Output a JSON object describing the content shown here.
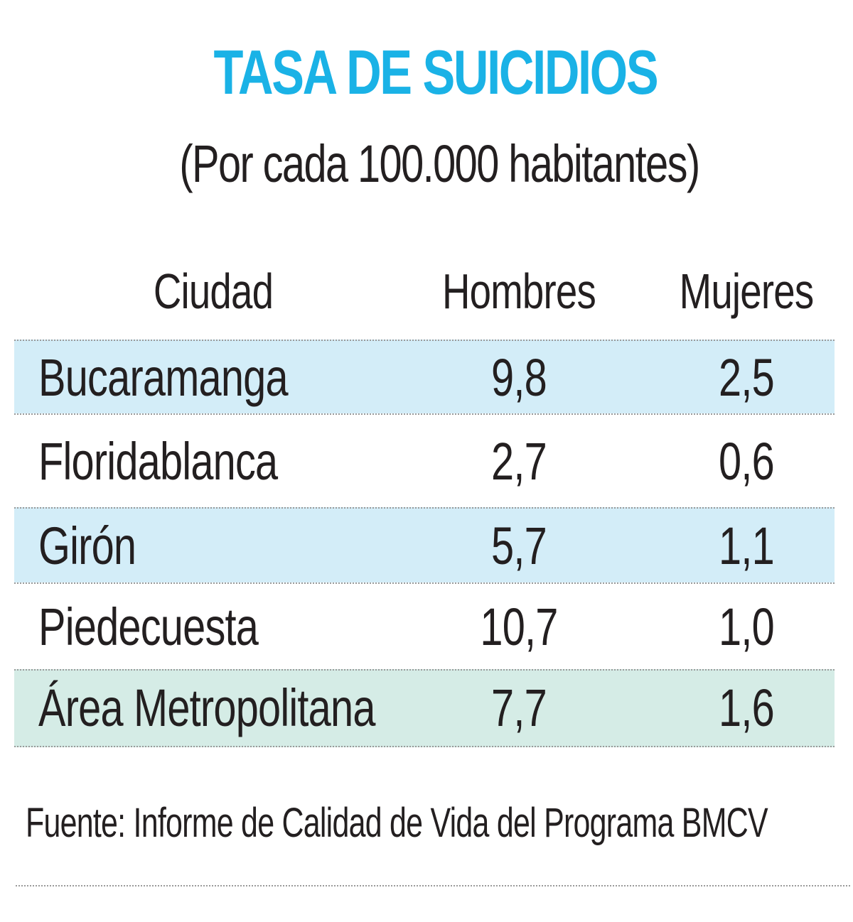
{
  "title": "TASA DE SUICIDIOS",
  "subtitle": "(Por cada 100.000 habitantes)",
  "colors": {
    "title": "#1ab2e6",
    "row_blue": "#d3edf8",
    "row_green": "#d5ece6",
    "row_white": "#ffffff",
    "text": "#231f20"
  },
  "chart_data": {
    "type": "table",
    "title": "TASA DE SUICIDIOS",
    "subtitle": "(Por cada 100.000 habitantes)",
    "columns": [
      "Ciudad",
      "Hombres",
      "Mujeres"
    ],
    "rows": [
      {
        "city": "Bucaramanga",
        "men": "9,8",
        "women": "2,5",
        "fill": "#d3edf8"
      },
      {
        "city": "Floridablanca",
        "men": "2,7",
        "women": "0,6",
        "fill": "#ffffff"
      },
      {
        "city": "Girón",
        "men": "5,7",
        "women": "1,1",
        "fill": "#d3edf8"
      },
      {
        "city": "Piedecuesta",
        "men": "10,7",
        "women": "1,0",
        "fill": "#ffffff"
      },
      {
        "city": "Área Metropolitana",
        "men": "7,7",
        "women": "1,6",
        "fill": "#d5ece6"
      }
    ],
    "source": "Fuente: Informe de Calidad de Vida del Programa BMCV"
  }
}
